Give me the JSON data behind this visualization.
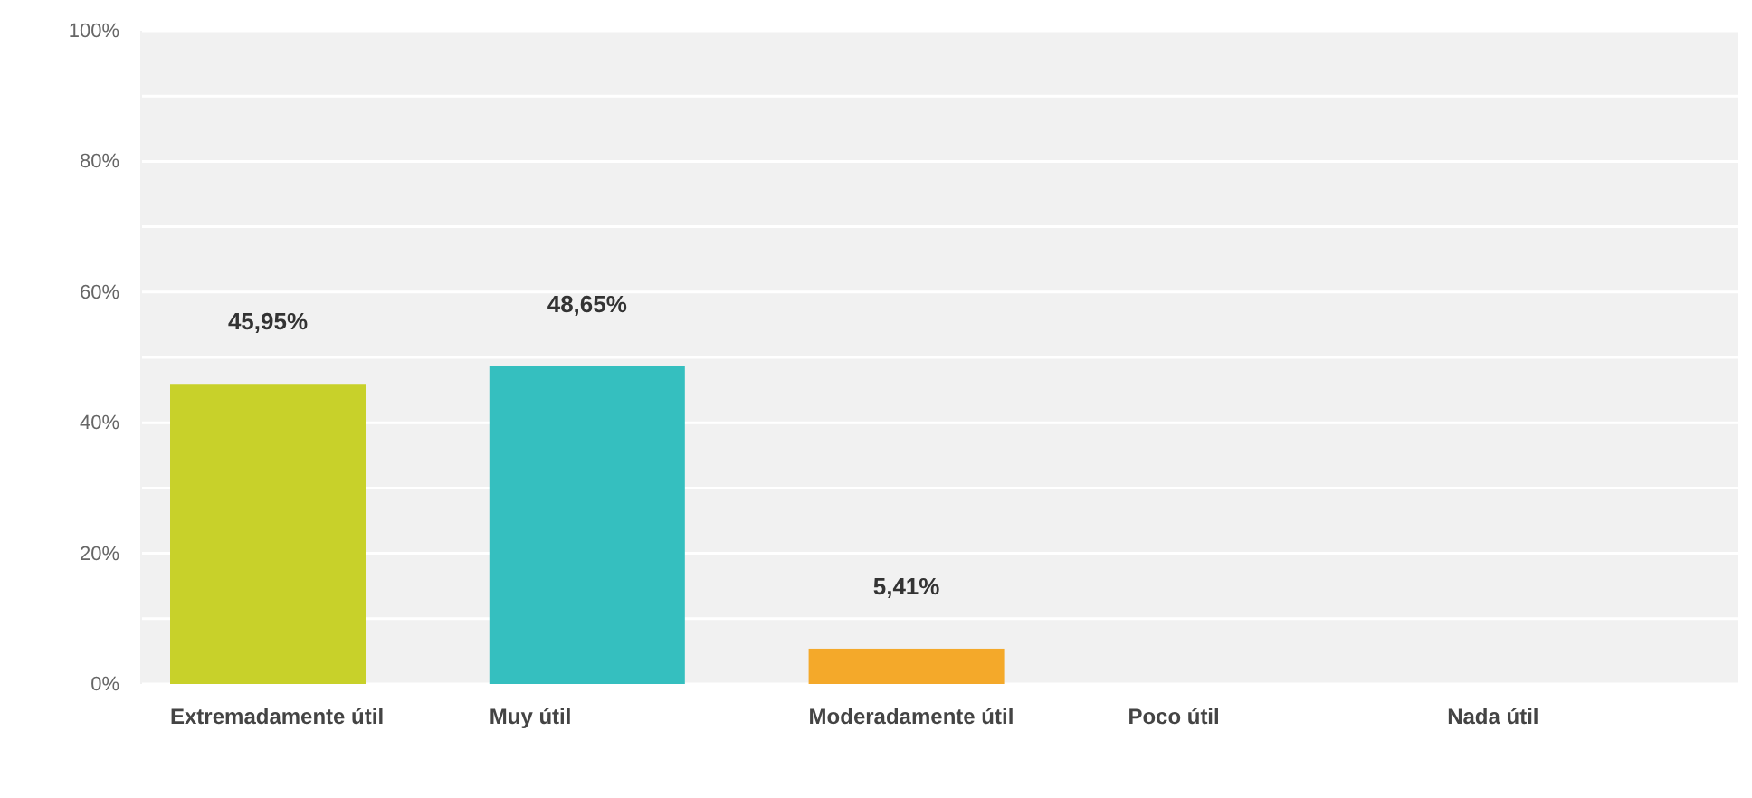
{
  "chart_data": {
    "type": "bar",
    "categories": [
      "Extremadamente útil",
      "Muy útil",
      "Moderadamente útil",
      "Poco útil",
      "Nada útil"
    ],
    "values": [
      45.95,
      48.65,
      5.41,
      0,
      0
    ],
    "colors": [
      "#c8d12a",
      "#35bfbf",
      "#f4a92a",
      "#c8d12a",
      "#c8d12a"
    ],
    "value_labels": [
      "45,95%",
      "48,65%",
      "5,41%",
      null,
      null
    ],
    "ylim": [
      0,
      100
    ],
    "yticks": [
      {
        "value": 0,
        "label": "0%"
      },
      {
        "value": 10,
        "label": null
      },
      {
        "value": 20,
        "label": "20%"
      },
      {
        "value": 30,
        "label": null
      },
      {
        "value": 40,
        "label": "40%"
      },
      {
        "value": 50,
        "label": null
      },
      {
        "value": 60,
        "label": "60%"
      },
      {
        "value": 70,
        "label": null
      },
      {
        "value": 80,
        "label": "80%"
      },
      {
        "value": 90,
        "label": null
      },
      {
        "value": 100,
        "label": "100%"
      }
    ],
    "grid": "y"
  }
}
